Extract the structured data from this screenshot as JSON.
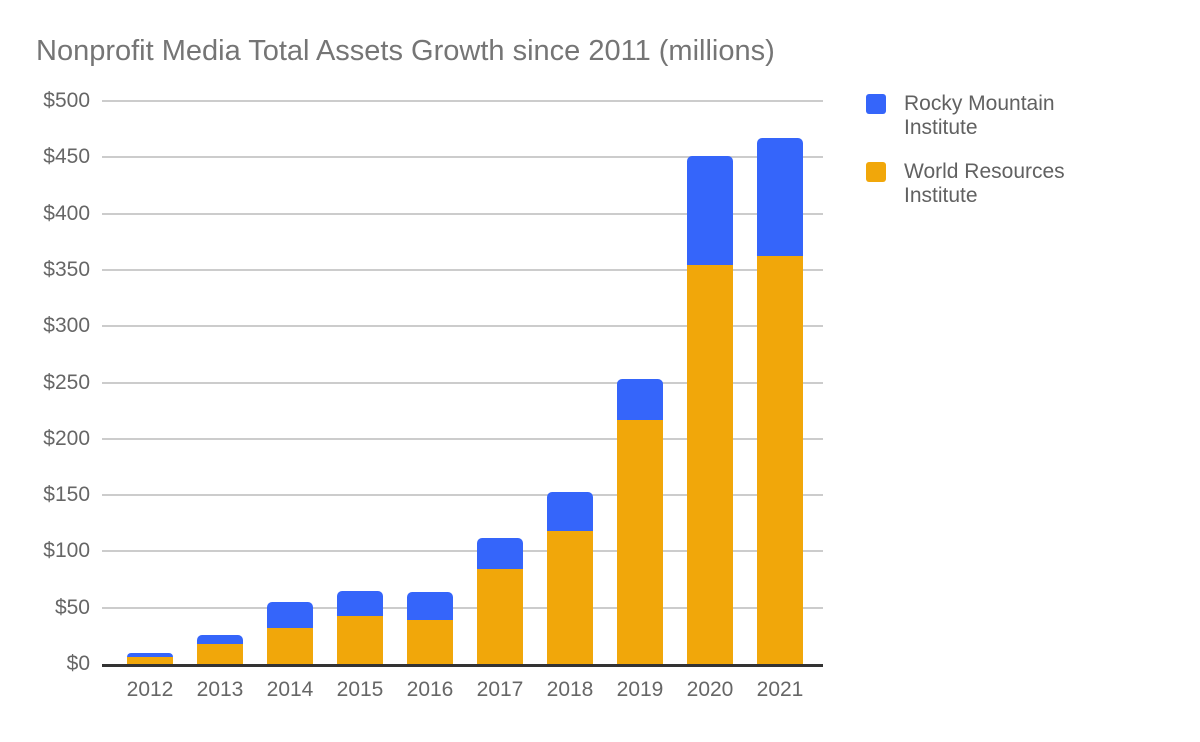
{
  "title": "Nonprofit Media Total Assets Growth since 2011 (millions)",
  "colors": {
    "rmi_blue": "#3565FA",
    "wri_orange": "#F1A70A",
    "gridline": "#CCCCCC",
    "axis_line": "#333333",
    "title_text": "#757575",
    "tick_text": "#666666",
    "legend_text": "#616161",
    "background": "#FFFFFF"
  },
  "legend": {
    "position": "right",
    "items": [
      {
        "label": "Rocky Mountain Institute",
        "color": "#3565FA"
      },
      {
        "label": "World Resources Institute",
        "color": "#F1A70A"
      }
    ]
  },
  "chart_data": {
    "type": "bar",
    "stacked": true,
    "title": "Nonprofit Media Total Assets Growth since 2011 (millions)",
    "categories": [
      "2012",
      "2013",
      "2014",
      "2015",
      "2016",
      "2017",
      "2018",
      "2019",
      "2020",
      "2021"
    ],
    "series": [
      {
        "name": "World Resources Institute",
        "color": "#F1A70A",
        "stack_order": "bottom",
        "values": [
          6,
          18,
          32,
          43,
          39,
          84,
          118,
          217,
          354,
          362
        ]
      },
      {
        "name": "Rocky Mountain Institute",
        "color": "#3565FA",
        "stack_order": "top",
        "values": [
          4,
          8,
          23,
          22,
          25,
          28,
          35,
          36,
          97,
          105
        ]
      }
    ],
    "totals": [
      10,
      26,
      55,
      65,
      64,
      112,
      153,
      253,
      451,
      467
    ],
    "xlabel": "",
    "ylabel": "",
    "y_axis": {
      "min": 0,
      "max": 500,
      "tick_step": 50,
      "prefix": "$",
      "ticks_top_down": [
        "$500",
        "$450",
        "$400",
        "$350",
        "$300",
        "$250",
        "$200",
        "$150",
        "$100",
        "$50",
        "$0"
      ]
    },
    "grid": true,
    "legend_position": "right"
  }
}
